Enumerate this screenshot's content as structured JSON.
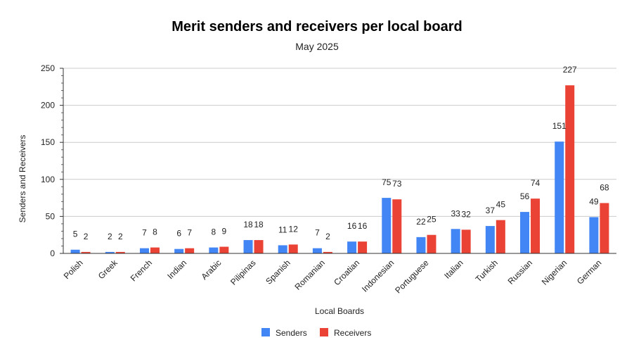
{
  "chart_data": {
    "type": "bar",
    "title": "Merit senders and receivers per local board",
    "subtitle": "May 2025",
    "xlabel": "Local Boards",
    "ylabel": "Senders and Receivers",
    "ylim": [
      0,
      250
    ],
    "yticks": [
      0,
      50,
      100,
      150,
      200,
      250
    ],
    "grid": true,
    "legend_position": "bottom",
    "categories": [
      "Polish",
      "Greek",
      "French",
      "Indian",
      "Arabic",
      "Pilipinas",
      "Spanish",
      "Romanian",
      "Croatian",
      "Indonesian",
      "Portuguese",
      "Italian",
      "Turkish",
      "Russian",
      "Nigerian",
      "German"
    ],
    "series": [
      {
        "name": "Senders",
        "color": "#4285f4",
        "values": [
          5,
          2,
          7,
          6,
          8,
          18,
          11,
          7,
          16,
          75,
          22,
          33,
          37,
          56,
          151,
          49
        ]
      },
      {
        "name": "Receivers",
        "color": "#ea4335",
        "values": [
          2,
          2,
          8,
          7,
          9,
          18,
          12,
          2,
          16,
          73,
          25,
          32,
          45,
          74,
          227,
          68
        ]
      }
    ]
  }
}
